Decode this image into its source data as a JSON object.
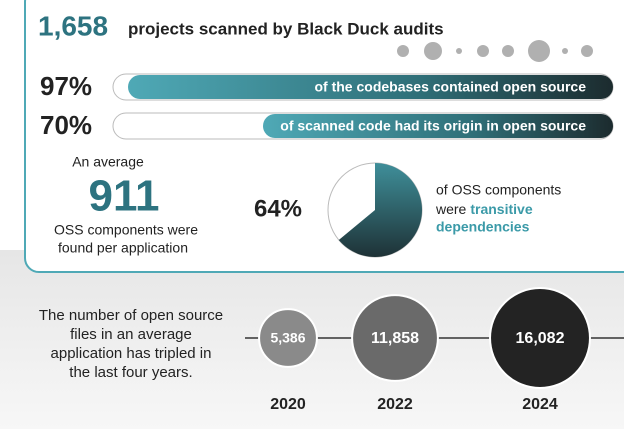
{
  "header": {
    "count": "1,658",
    "title": "projects scanned by Black Duck audits"
  },
  "bars": [
    {
      "value": 97,
      "label": "97%",
      "text": "of the codebases contained open source"
    },
    {
      "value": 70,
      "label": "70%",
      "text": "of scanned code had its origin in open source"
    }
  ],
  "average": {
    "intro": "An average",
    "number": "911",
    "lines": [
      "OSS components were",
      "found per application"
    ]
  },
  "pie": {
    "value": 64,
    "label": "64%",
    "caption": [
      "of OSS components",
      "were"
    ],
    "highlight": [
      "transitive",
      "dependencies"
    ]
  },
  "growth": {
    "text": [
      "The number of open source",
      "files in an average",
      "application has tripled in",
      "the last four years."
    ],
    "points": [
      {
        "value": 5386,
        "label": "5,386",
        "year": "2020",
        "color": "#8a8a8a"
      },
      {
        "value": 11858,
        "label": "11,858",
        "year": "2022",
        "color": "#6a6a6a"
      },
      {
        "value": 16082,
        "label": "16,082",
        "year": "2024",
        "color": "#232323"
      }
    ]
  }
}
